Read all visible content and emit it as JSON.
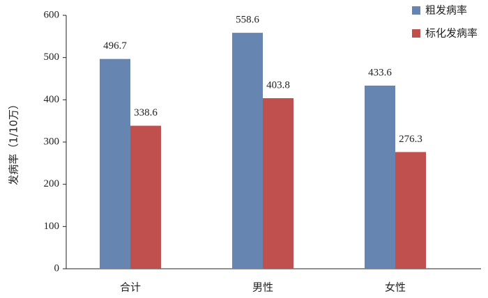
{
  "chart_data": {
    "type": "bar",
    "y_label": "发病率（1/10万）",
    "categories": [
      "合计",
      "男性",
      "女性"
    ],
    "series": [
      {
        "name": "粗发病率",
        "color": "#6685b0",
        "values": [
          496.7,
          558.6,
          433.6
        ]
      },
      {
        "name": "标化发病率",
        "color": "#c0504d",
        "values": [
          338.6,
          403.8,
          276.3
        ]
      }
    ],
    "ylim": [
      0,
      600
    ],
    "yticks": [
      0,
      100,
      200,
      300,
      400,
      500,
      600
    ],
    "grid": false,
    "legend": "top-right"
  }
}
